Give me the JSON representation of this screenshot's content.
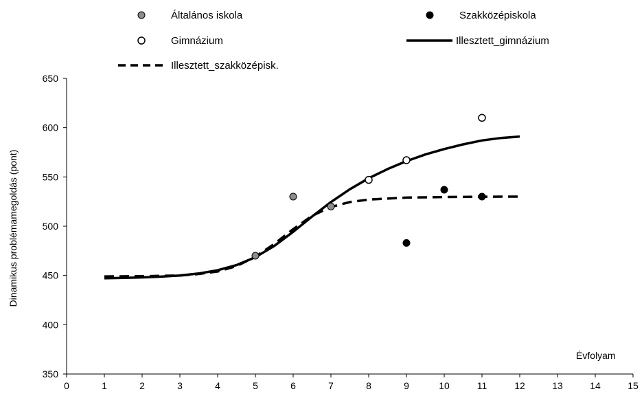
{
  "chart_data": {
    "type": "scatter",
    "title": "",
    "xlabel": "Évfolyam",
    "ylabel": "Dinamikus problémamegoldás (pont)",
    "xlim": [
      0,
      15
    ],
    "ylim": [
      350,
      650
    ],
    "x_ticks": [
      0,
      1,
      2,
      3,
      4,
      5,
      6,
      7,
      8,
      9,
      10,
      11,
      12,
      13,
      14,
      15
    ],
    "y_ticks": [
      350,
      400,
      450,
      500,
      550,
      600,
      650
    ],
    "grid": false,
    "legend_position": "top",
    "series": [
      {
        "name": "Általános iskola",
        "kind": "points",
        "marker": "circle-filled-gray",
        "color": "#8c8c8c",
        "points": [
          {
            "x": 5,
            "y": 470
          },
          {
            "x": 6,
            "y": 530
          },
          {
            "x": 7,
            "y": 520
          }
        ]
      },
      {
        "name": "Szakközépiskola",
        "kind": "points",
        "marker": "circle-filled-black",
        "color": "#000000",
        "points": [
          {
            "x": 9,
            "y": 483
          },
          {
            "x": 10,
            "y": 537
          },
          {
            "x": 11,
            "y": 530
          }
        ]
      },
      {
        "name": "Gimnázium",
        "kind": "points",
        "marker": "circle-open",
        "color": "#000000",
        "points": [
          {
            "x": 8,
            "y": 547
          },
          {
            "x": 9,
            "y": 567
          },
          {
            "x": 11,
            "y": 610
          }
        ]
      },
      {
        "name": "Illesztett_gimnázium",
        "kind": "line",
        "dash": "solid",
        "color": "#000000",
        "points": [
          {
            "x": 1,
            "y": 447.2
          },
          {
            "x": 1.5,
            "y": 447.5
          },
          {
            "x": 2,
            "y": 448.0
          },
          {
            "x": 2.5,
            "y": 448.8
          },
          {
            "x": 3,
            "y": 450.0
          },
          {
            "x": 3.5,
            "y": 452.0
          },
          {
            "x": 4,
            "y": 455.3
          },
          {
            "x": 4.5,
            "y": 460.5
          },
          {
            "x": 5,
            "y": 468.5
          },
          {
            "x": 5.5,
            "y": 480.0
          },
          {
            "x": 6,
            "y": 494.3
          },
          {
            "x": 6.5,
            "y": 509.8
          },
          {
            "x": 7,
            "y": 524.5
          },
          {
            "x": 7.5,
            "y": 537.5
          },
          {
            "x": 8,
            "y": 548.6
          },
          {
            "x": 8.5,
            "y": 558.0
          },
          {
            "x": 9,
            "y": 566.0
          },
          {
            "x": 9.5,
            "y": 572.8
          },
          {
            "x": 10,
            "y": 578.3
          },
          {
            "x": 10.5,
            "y": 583.0
          },
          {
            "x": 11,
            "y": 587.0
          },
          {
            "x": 11.5,
            "y": 589.5
          },
          {
            "x": 12,
            "y": 591.0
          }
        ]
      },
      {
        "name": "Illesztett_szakközépisk.",
        "kind": "line",
        "dash": "dashed",
        "color": "#000000",
        "points": [
          {
            "x": 1,
            "y": 449.0
          },
          {
            "x": 2,
            "y": 449.2
          },
          {
            "x": 3,
            "y": 450.0
          },
          {
            "x": 3.5,
            "y": 451.5
          },
          {
            "x": 4,
            "y": 454.0
          },
          {
            "x": 4.5,
            "y": 459.5
          },
          {
            "x": 5,
            "y": 469.0
          },
          {
            "x": 5.5,
            "y": 482.0
          },
          {
            "x": 6,
            "y": 497.0
          },
          {
            "x": 6.5,
            "y": 510.5
          },
          {
            "x": 7,
            "y": 519.5
          },
          {
            "x": 7.5,
            "y": 524.5
          },
          {
            "x": 8,
            "y": 527.0
          },
          {
            "x": 9,
            "y": 529.0
          },
          {
            "x": 10,
            "y": 529.6
          },
          {
            "x": 11,
            "y": 529.9
          },
          {
            "x": 12,
            "y": 530.0
          }
        ]
      }
    ]
  }
}
